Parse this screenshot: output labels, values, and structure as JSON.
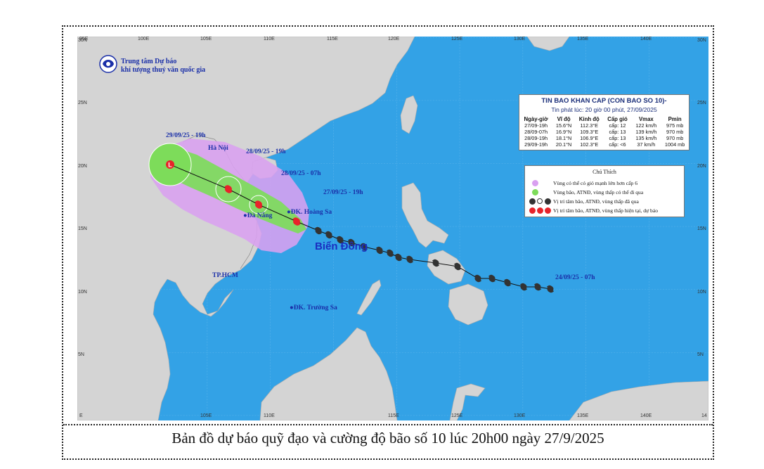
{
  "caption": "Bản đồ dự báo quỹ đạo và cường độ bão số 10 lúc 20h00 ngày 27/9/2025",
  "organization": {
    "line1": "Trung tâm Dự báo",
    "line2": "khí tượng thuỷ văn quốc gia",
    "logo_text": "NCHMF"
  },
  "axes": {
    "top": [
      "95E",
      "100E",
      "105E",
      "110E",
      "115E",
      "120E",
      "125E",
      "130E",
      "135E",
      "140E"
    ],
    "bottom": [
      "E",
      "105E",
      "110E",
      "115E",
      "125E",
      "130E",
      "135E",
      "140E",
      "14"
    ],
    "left": [
      "30N",
      "25N",
      "20N",
      "15N",
      "10N",
      "5N"
    ],
    "right": [
      "30N",
      "25N",
      "20N",
      "15N",
      "10N",
      "5N"
    ]
  },
  "forecast_labels": [
    "29/09/25 - 19h",
    "28/09/25 - 19h",
    "28/09/25 - 07h",
    "27/09/25 - 19h",
    "24/09/25 - 07h"
  ],
  "places": {
    "hanoi": "Hà Nội",
    "danang": "Đà Nẵng",
    "hoangsa": "ĐK. Hoàng Sa",
    "hcm": "TP.HCM",
    "truongsa": "ĐK. Trường Sa"
  },
  "sea_label": "Biển Đông",
  "info": {
    "title": "TIN BAO KHAN CAP (CON BAO SO 10)-",
    "issued": "Tin phát lúc: 20 giờ 00 phút, 27/09/2025",
    "headers": [
      "Ngày-giờ",
      "Vĩ độ",
      "Kinh độ",
      "Cấp gió",
      "Vmax",
      "Pmin"
    ],
    "rows": [
      [
        "27/09-19h",
        "15.6°N",
        "112.3°E",
        "cấp: 12",
        "122 km/h",
        "975 mb"
      ],
      [
        "28/09-07h",
        "16.9°N",
        "109.3°E",
        "cấp: 13",
        "139 km/h",
        "970 mb"
      ],
      [
        "28/09-19h",
        "18.1°N",
        "106.9°E",
        "cấp: 13",
        "135 km/h",
        "970 mb"
      ],
      [
        "29/09-19h",
        "20.1°N",
        "102.3°E",
        "cấp: <6",
        "37 km/h",
        "1004 mb"
      ]
    ]
  },
  "legend": {
    "title": "Chú Thích",
    "items": [
      "Vùng có thể có gió mạnh lớn hơn cấp 6",
      "Vùng bão, ATNĐ, vùng thấp có thể đi qua",
      "Vị trí tâm bão, ATNĐ, vùng thấp đã qua",
      "Vị trí tâm bão, ATNĐ, vùng thấp hiện tại, dự báo"
    ],
    "colors": {
      "purple": "#d9a0f0",
      "green": "#7ddc5a",
      "past": "#333333",
      "forecast": "#e8232a"
    }
  },
  "colors": {
    "sea": "#33a2e6",
    "land": "#d4d4d4",
    "track": "#111111",
    "label": "#1a2fa8"
  }
}
